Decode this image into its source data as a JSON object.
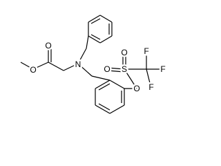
{
  "atoms": [
    {
      "label": "O"
    },
    {
      "label": "O"
    },
    {
      "label": "N"
    },
    {
      "label": "O"
    },
    {
      "label": "S"
    },
    {
      "label": "O"
    },
    {
      "label": "O"
    },
    {
      "label": "F"
    },
    {
      "label": "F"
    },
    {
      "label": "F"
    }
  ]
}
